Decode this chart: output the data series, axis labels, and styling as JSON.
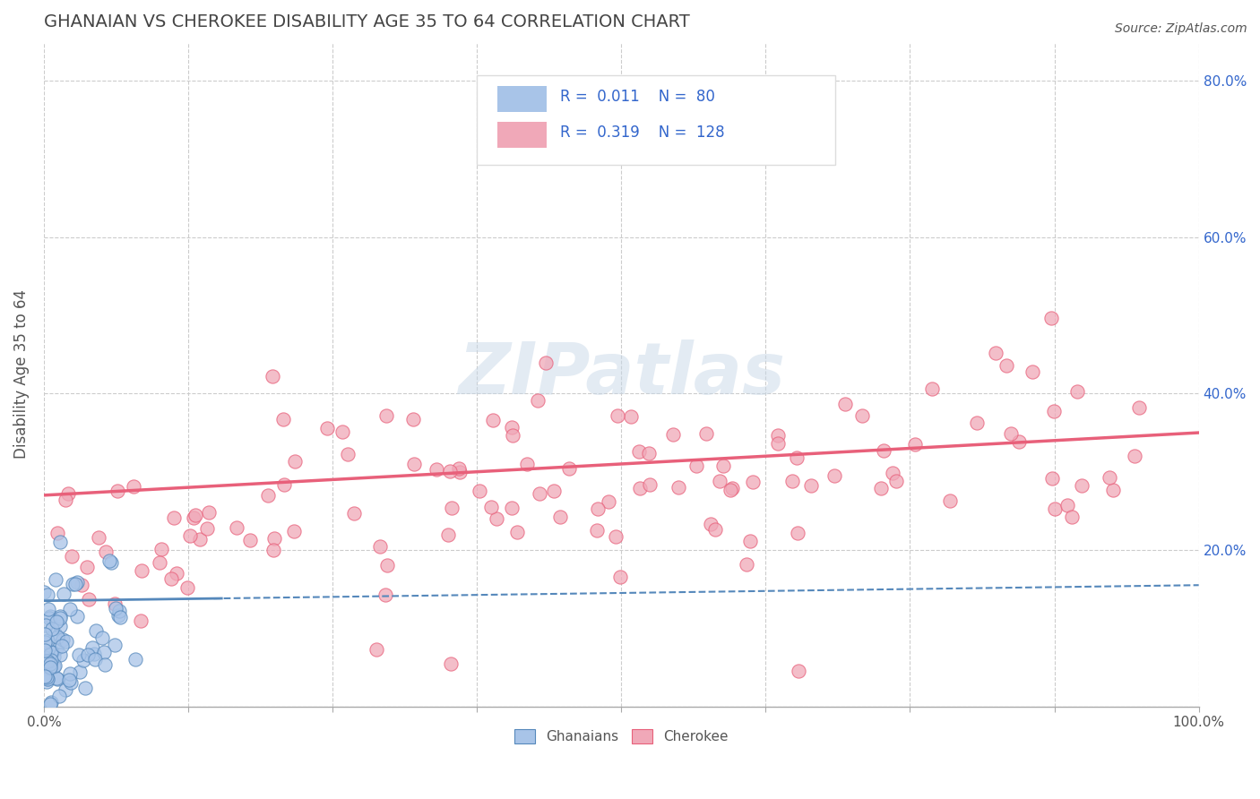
{
  "title": "GHANAIAN VS CHEROKEE DISABILITY AGE 35 TO 64 CORRELATION CHART",
  "source": "Source: ZipAtlas.com",
  "ylabel": "Disability Age 35 to 64",
  "xlim": [
    0.0,
    1.0
  ],
  "ylim": [
    0.0,
    0.85
  ],
  "xticks": [
    0.0,
    0.125,
    0.25,
    0.375,
    0.5,
    0.625,
    0.75,
    0.875,
    1.0
  ],
  "xtick_labels": [
    "0.0%",
    "",
    "",
    "",
    "",
    "",
    "",
    "",
    "100.0%"
  ],
  "yticks": [
    0.0,
    0.2,
    0.4,
    0.6,
    0.8
  ],
  "ytick_labels": [
    "",
    "20.0%",
    "40.0%",
    "60.0%",
    "80.0%"
  ],
  "ghanaian_color": "#a8c4e8",
  "cherokee_color": "#f0a8b8",
  "ghanaian_line_color": "#5588bb",
  "cherokee_line_color": "#e8607a",
  "ghanaian_R": 0.011,
  "ghanaian_N": 80,
  "cherokee_R": 0.319,
  "cherokee_N": 128,
  "background_color": "#ffffff",
  "grid_color": "#cccccc",
  "title_color": "#444444",
  "label_color": "#555555",
  "legend_R_color": "#3366cc",
  "axis_label_color": "#3366cc",
  "watermark_color": "#c8d8e8"
}
